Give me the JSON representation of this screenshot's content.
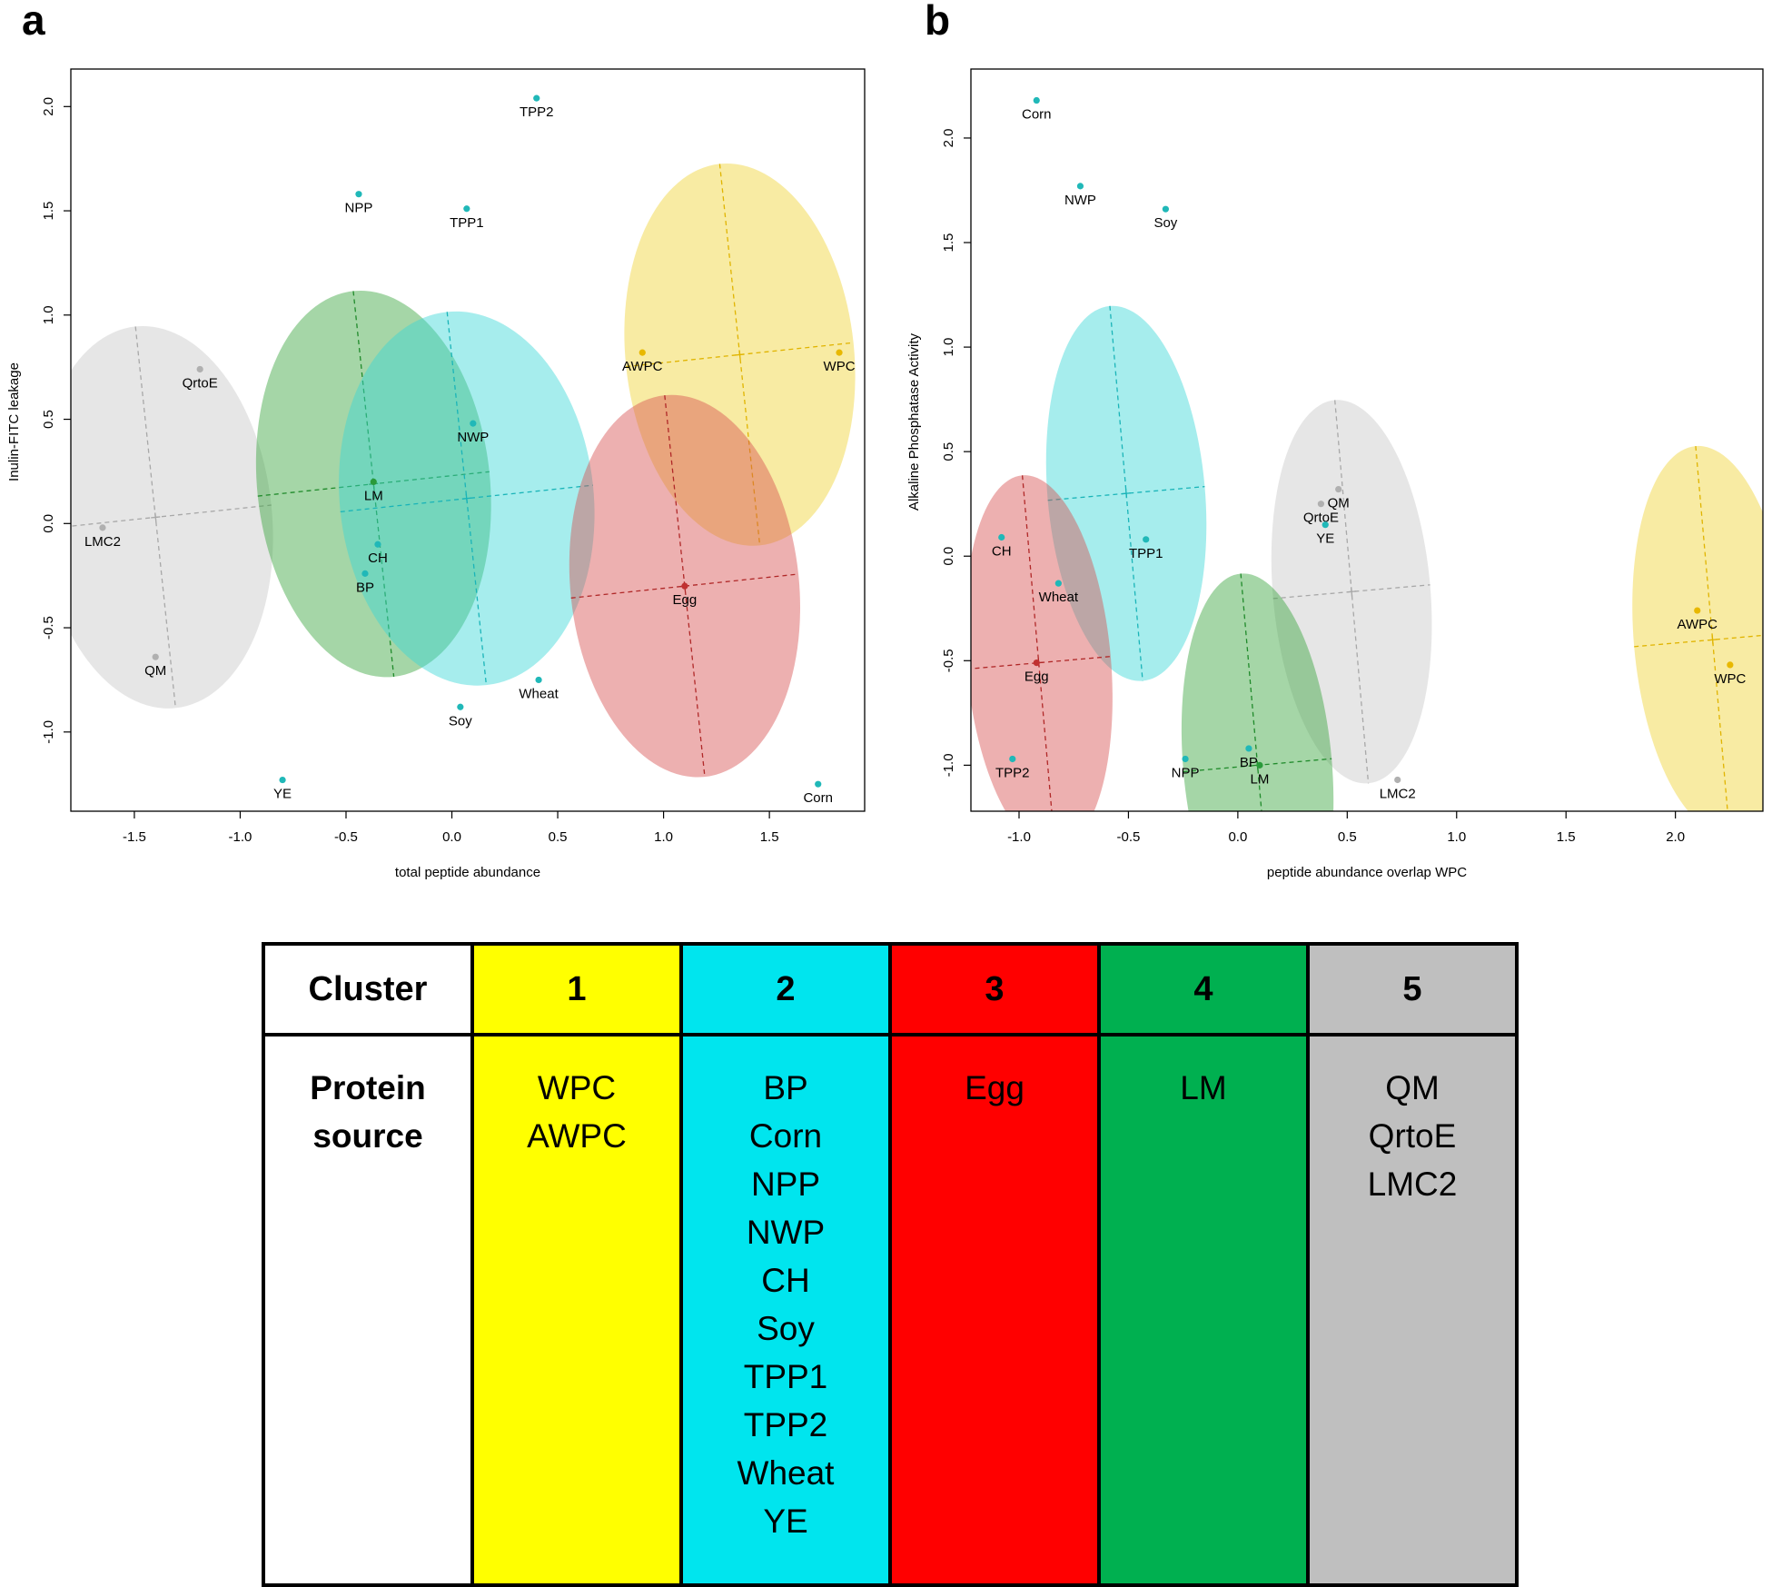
{
  "colors": {
    "cluster1": "#f0d232",
    "cluster2": "#3ad6d8",
    "cluster3": "#d65050",
    "cluster4": "#37a53c",
    "cluster5": "#c8c8c8",
    "cluster1_table": "#ffff00",
    "cluster2_table": "#00e5ee",
    "cluster3_table": "#ff0000",
    "cluster4_table": "#00b050",
    "cluster5_table": "#bfbfbf"
  },
  "chart_data": [
    {
      "panel": "a",
      "type": "scatter",
      "xlabel": "total peptide abundance",
      "ylabel": "Inulin-FITC leakage",
      "xlim": [
        -1.8,
        1.95
      ],
      "ylim": [
        -1.38,
        2.18
      ],
      "xticks": [
        "-1.5",
        "-1.0",
        "-0.5",
        "0.0",
        "0.5",
        "1.0",
        "1.5"
      ],
      "yticks": [
        "-1.0",
        "-0.5",
        "0.0",
        "0.5",
        "1.0",
        "1.5",
        "2.0"
      ],
      "points": [
        {
          "label": "TPP2",
          "x": 0.4,
          "y": 2.04,
          "cluster": 2
        },
        {
          "label": "NPP",
          "x": -0.44,
          "y": 1.58,
          "cluster": 2
        },
        {
          "label": "TPP1",
          "x": 0.07,
          "y": 1.51,
          "cluster": 2
        },
        {
          "label": "QrtoE",
          "x": -1.19,
          "y": 0.74,
          "cluster": 5
        },
        {
          "label": "AWPC",
          "x": 0.9,
          "y": 0.82,
          "cluster": 1
        },
        {
          "label": "WPC",
          "x": 1.83,
          "y": 0.82,
          "cluster": 1
        },
        {
          "label": "NWP",
          "x": 0.1,
          "y": 0.48,
          "cluster": 2
        },
        {
          "label": "LM",
          "x": -0.37,
          "y": 0.2,
          "cluster": 4
        },
        {
          "label": "LMC2",
          "x": -1.65,
          "y": -0.02,
          "cluster": 5
        },
        {
          "label": "CH",
          "x": -0.35,
          "y": -0.1,
          "cluster": 2
        },
        {
          "label": "BP",
          "x": -0.41,
          "y": -0.24,
          "cluster": 2
        },
        {
          "label": "Egg",
          "x": 1.1,
          "y": -0.3,
          "cluster": 3
        },
        {
          "label": "QM",
          "x": -1.4,
          "y": -0.64,
          "cluster": 5
        },
        {
          "label": "Wheat",
          "x": 0.41,
          "y": -0.75,
          "cluster": 2
        },
        {
          "label": "Soy",
          "x": 0.04,
          "y": -0.88,
          "cluster": 2
        },
        {
          "label": "YE",
          "x": -0.8,
          "y": -1.23,
          "cluster": 2
        },
        {
          "label": "Corn",
          "x": 1.73,
          "y": -1.25,
          "cluster": 2
        }
      ],
      "ellipses": [
        {
          "cluster": 5,
          "cx": -1.4,
          "cy": 0.03,
          "rx": 0.55,
          "ry": 0.92,
          "angle": -6
        },
        {
          "cluster": 4,
          "cx": -0.37,
          "cy": 0.19,
          "rx": 0.55,
          "ry": 0.93,
          "angle": -6
        },
        {
          "cluster": 2,
          "cx": 0.07,
          "cy": 0.12,
          "rx": 0.6,
          "ry": 0.9,
          "angle": -6
        },
        {
          "cluster": 1,
          "cx": 1.36,
          "cy": 0.81,
          "rx": 0.54,
          "ry": 0.92,
          "angle": -6
        },
        {
          "cluster": 3,
          "cx": 1.1,
          "cy": -0.3,
          "rx": 0.54,
          "ry": 0.92,
          "angle": -6
        }
      ]
    },
    {
      "panel": "b",
      "type": "scatter",
      "xlabel": "peptide abundance overlap WPC",
      "ylabel": "Alkaline Phosphatase Activity",
      "xlim": [
        -1.22,
        2.4
      ],
      "ylim": [
        -1.22,
        2.33
      ],
      "xticks": [
        "-1.0",
        "-0.5",
        "0.0",
        "0.5",
        "1.0",
        "1.5",
        "2.0"
      ],
      "yticks": [
        "-1.0",
        "-0.5",
        "0.0",
        "0.5",
        "1.0",
        "1.5",
        "2.0"
      ],
      "points": [
        {
          "label": "Corn",
          "x": -0.92,
          "y": 2.18,
          "cluster": 2
        },
        {
          "label": "NWP",
          "x": -0.72,
          "y": 1.77,
          "cluster": 2
        },
        {
          "label": "Soy",
          "x": -0.33,
          "y": 1.66,
          "cluster": 2
        },
        {
          "label": "QM",
          "x": 0.46,
          "y": 0.32,
          "cluster": 5
        },
        {
          "label": "QrtoE",
          "x": 0.38,
          "y": 0.25,
          "cluster": 5
        },
        {
          "label": "YE",
          "x": 0.4,
          "y": 0.15,
          "cluster": 2
        },
        {
          "label": "CH",
          "x": -1.08,
          "y": 0.09,
          "cluster": 2
        },
        {
          "label": "TPP1",
          "x": -0.42,
          "y": 0.08,
          "cluster": 2
        },
        {
          "label": "Wheat",
          "x": -0.82,
          "y": -0.13,
          "cluster": 2
        },
        {
          "label": "AWPC",
          "x": 2.1,
          "y": -0.26,
          "cluster": 1
        },
        {
          "label": "Egg",
          "x": -0.92,
          "y": -0.51,
          "cluster": 3
        },
        {
          "label": "WPC",
          "x": 2.25,
          "y": -0.52,
          "cluster": 1
        },
        {
          "label": "TPP2",
          "x": -1.03,
          "y": -0.97,
          "cluster": 2
        },
        {
          "label": "NPP",
          "x": -0.24,
          "y": -0.97,
          "cluster": 2
        },
        {
          "label": "BP",
          "x": 0.05,
          "y": -0.92,
          "cluster": 2
        },
        {
          "label": "LM",
          "x": 0.1,
          "y": -1.0,
          "cluster": 4
        },
        {
          "label": "LMC2",
          "x": 0.73,
          "y": -1.07,
          "cluster": 5
        }
      ],
      "ellipses": [
        {
          "cluster": 2,
          "cx": -0.51,
          "cy": 0.3,
          "rx": 0.36,
          "ry": 0.9,
          "angle": -5
        },
        {
          "cluster": 3,
          "cx": -0.91,
          "cy": -0.51,
          "rx": 0.33,
          "ry": 0.9,
          "angle": -5
        },
        {
          "cluster": 5,
          "cx": 0.52,
          "cy": -0.17,
          "rx": 0.36,
          "ry": 0.92,
          "angle": -5
        },
        {
          "cluster": 4,
          "cx": 0.09,
          "cy": -1.0,
          "rx": 0.34,
          "ry": 0.92,
          "angle": -5
        },
        {
          "cluster": 1,
          "cx": 2.17,
          "cy": -0.4,
          "rx": 0.36,
          "ry": 0.93,
          "angle": -5
        }
      ]
    }
  ],
  "table": {
    "header_label": "Cluster",
    "row_label_line1": "Protein",
    "row_label_line2": "source",
    "clusters": [
      {
        "number": "1",
        "sources": [
          "WPC",
          "AWPC"
        ]
      },
      {
        "number": "2",
        "sources": [
          "BP",
          "Corn",
          "NPP",
          "NWP",
          "CH",
          "Soy",
          "TPP1",
          "TPP2",
          "Wheat",
          "YE"
        ]
      },
      {
        "number": "3",
        "sources": [
          "Egg"
        ]
      },
      {
        "number": "4",
        "sources": [
          "LM"
        ]
      },
      {
        "number": "5",
        "sources": [
          "QM",
          "QrtoE",
          "LMC2"
        ]
      }
    ]
  }
}
